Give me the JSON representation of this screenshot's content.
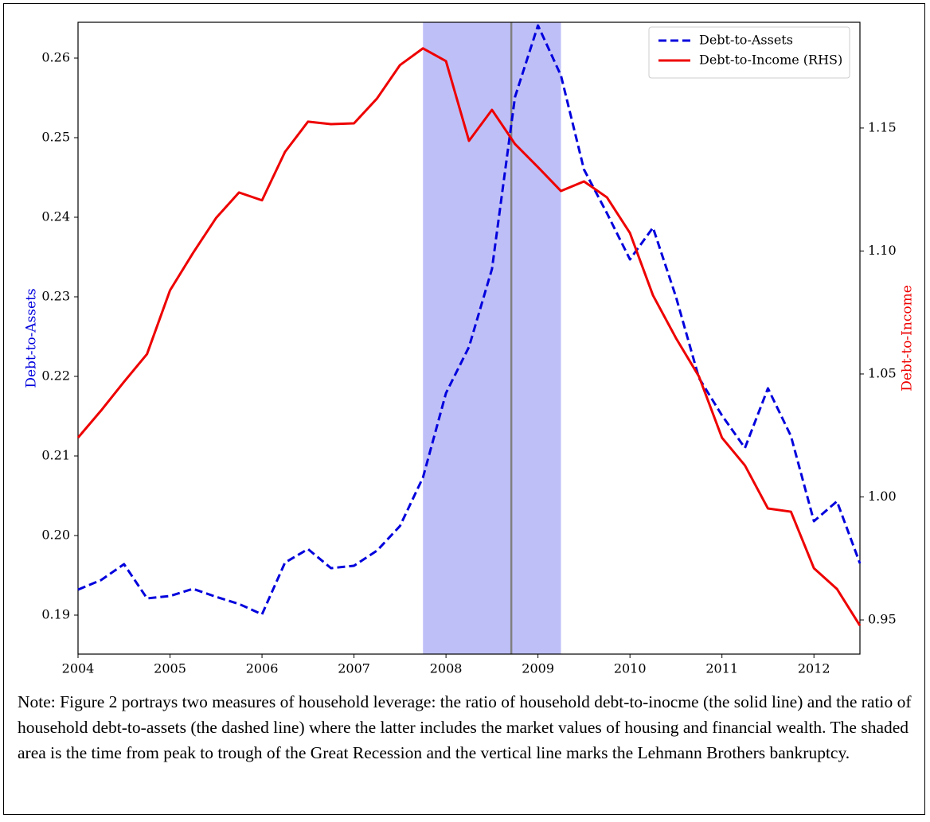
{
  "chart_data": {
    "type": "line",
    "x": [
      2004,
      2004.25,
      2004.5,
      2004.75,
      2005,
      2005.25,
      2005.5,
      2005.75,
      2006,
      2006.25,
      2006.5,
      2006.75,
      2007,
      2007.25,
      2007.5,
      2007.75,
      2008,
      2008.25,
      2008.5,
      2008.75,
      2009,
      2009.25,
      2009.5,
      2009.75,
      2010,
      2010.25,
      2010.5,
      2010.75,
      2011,
      2011.25,
      2011.5,
      2011.75,
      2012,
      2012.25,
      2012.5
    ],
    "series": [
      {
        "name": "Debt-to-Assets",
        "color": "#0000dd",
        "dash": true,
        "values": [
          0.1932,
          0.1944,
          0.1964,
          0.1921,
          0.1924,
          0.1933,
          0.1923,
          0.1914,
          0.1901,
          0.1966,
          0.1983,
          0.1959,
          0.1962,
          0.1981,
          0.2012,
          0.2073,
          0.2179,
          0.2237,
          0.2335,
          0.2551,
          0.2641,
          0.2578,
          0.246,
          0.2405,
          0.2347,
          0.2387,
          0.23,
          0.2198,
          0.2151,
          0.211,
          0.2185,
          0.2125,
          0.2018,
          0.2043,
          0.1965
        ]
      },
      {
        "name": "Debt-to-Income (RHS)",
        "color": "#ee0000",
        "axis": "y2",
        "values": [
          1.0241,
          1.0351,
          1.0468,
          1.0581,
          1.084,
          1.0992,
          1.1134,
          1.1238,
          1.1206,
          1.1403,
          1.1526,
          1.1516,
          1.1519,
          1.162,
          1.1756,
          1.1824,
          1.1772,
          1.1448,
          1.1574,
          1.1435,
          1.1341,
          1.1244,
          1.1283,
          1.1218,
          1.1073,
          1.082,
          1.0646,
          1.049,
          1.0241,
          1.0128,
          0.9953,
          0.994,
          0.971,
          0.9626,
          0.9477
        ]
      }
    ],
    "xlim": [
      2004,
      2012.5
    ],
    "xticks": [
      2004,
      2005,
      2006,
      2007,
      2008,
      2009,
      2010,
      2011,
      2012
    ],
    "ylim": [
      0.1851,
      0.2645
    ],
    "yticks": [
      0.19,
      {
        "value": 0.2,
        "label": "0.20"
      },
      0.21,
      0.22,
      0.23,
      0.24,
      0.25,
      0.26
    ],
    "y2lim": [
      0.9361,
      1.193
    ],
    "y2ticks": [
      0.95,
      {
        "value": 1.0,
        "label": "1.00"
      },
      1.05,
      {
        "value": 1.1,
        "label": "1.10"
      },
      1.15
    ],
    "y_label": "Debt-to-Assets",
    "y2_label": "Debt-to-Income",
    "shaded_region": [
      2007.75,
      2009.25
    ],
    "vline": 2008.71,
    "legend": "upper right",
    "note": "Note: Figure 2 portrays two measures of household leverage: the ratio of household debt-to-inocme (the solid line) and the ratio of household debt-to-assets (the dashed line) where the latter includes the market values of housing and financial wealth. The shaded area is the time from peak to trough of the Great Recession and the vertical line marks the Lehmann Brothers bankruptcy."
  }
}
